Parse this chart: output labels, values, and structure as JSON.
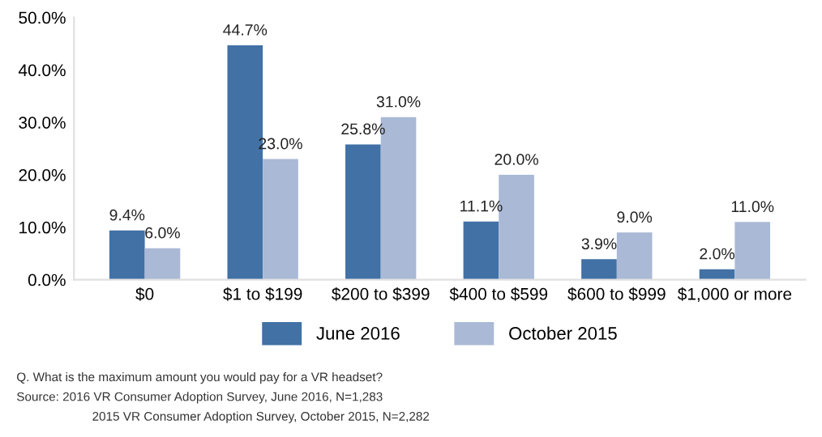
{
  "chart_data": {
    "type": "bar",
    "categories": [
      "$0",
      "$1 to $199",
      "$200 to $399",
      "$400 to $599",
      "$600 to $999",
      "$1,000 or more"
    ],
    "series": [
      {
        "name": "June 2016",
        "color": "#4171a5",
        "values": [
          9.4,
          44.7,
          25.8,
          11.1,
          3.9,
          2.0
        ],
        "value_labels": [
          "9.4%",
          "44.7%",
          "25.8%",
          "11.1%",
          "3.9%",
          "2.0%"
        ]
      },
      {
        "name": "October 2015",
        "color": "#a9b9d6",
        "values": [
          6.0,
          23.0,
          31.0,
          20.0,
          9.0,
          11.0
        ],
        "value_labels": [
          "6.0%",
          "23.0%",
          "31.0%",
          "20.0%",
          "9.0%",
          "11.0%"
        ]
      }
    ],
    "ylim": [
      0,
      50
    ],
    "yticks": [
      {
        "value": 0,
        "label": "0.0%"
      },
      {
        "value": 10,
        "label": "10.0%"
      },
      {
        "value": 20,
        "label": "20.0%"
      },
      {
        "value": 30,
        "label": "30.0%"
      },
      {
        "value": 40,
        "label": "40.0%"
      },
      {
        "value": 50,
        "label": "50.0%"
      }
    ],
    "grid": false,
    "legend": "bottom",
    "annotations": [
      "Q. What is the maximum amount you would pay for a VR headset?",
      "Source: 2016 VR Consumer Adoption Survey, June 2016, N=1,283",
      "2015 VR Consumer Adoption Survey, October 2015, N=2,282"
    ]
  }
}
